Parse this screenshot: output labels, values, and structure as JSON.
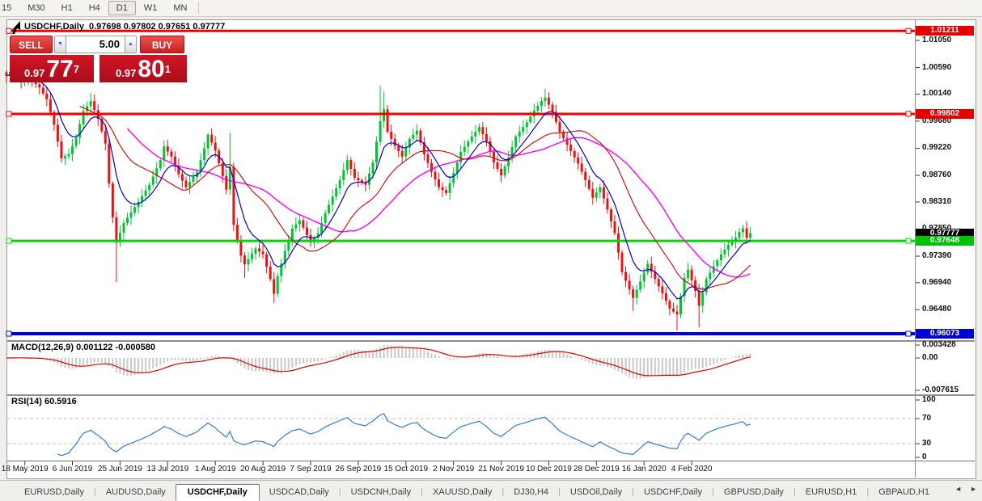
{
  "toolbar": {
    "timeframes": [
      "15",
      "M30",
      "H1",
      "H4",
      "D1",
      "W1",
      "MN"
    ],
    "active": "D1"
  },
  "chart": {
    "title": {
      "symbol": "USDCHF,Daily",
      "ohlc": "0.97698 0.97802 0.97651 0.97777"
    },
    "trade_panel": {
      "sell_label": "SELL",
      "buy_label": "BUY",
      "volume": "5.00",
      "sell_price": {
        "small": "0.97",
        "big": "77",
        "sup": "7"
      },
      "buy_price": {
        "small": "0.97",
        "big": "80",
        "sup": "1"
      }
    },
    "price_axis": {
      "ticks": [
        "1.01050",
        "1.00590",
        "1.00140",
        "0.99680",
        "0.99220",
        "0.98760",
        "0.98310",
        "0.97850",
        "0.97390",
        "0.96940",
        "0.96480",
        "0.96020"
      ]
    },
    "badges": [
      {
        "text": "1.01211",
        "price": 1.01211,
        "bg": "#e60000",
        "fg": "#ffffff"
      },
      {
        "text": "0.99802",
        "price": 0.99802,
        "bg": "#e60000",
        "fg": "#ffffff"
      },
      {
        "text": "0.97777",
        "price": 0.97777,
        "bg": "#000000",
        "fg": "#ffffff"
      },
      {
        "text": "0.97648",
        "price": 0.97648,
        "bg": "#00c300",
        "fg": "#ffffff"
      },
      {
        "text": "0.96073",
        "price": 0.96073,
        "bg": "#0000d9",
        "fg": "#ffffff"
      }
    ],
    "hlines": [
      {
        "price": 1.01211,
        "color": "#f40000",
        "w": 3
      },
      {
        "price": 0.99802,
        "color": "#f40000",
        "w": 3
      },
      {
        "price": 0.97648,
        "color": "#00d900",
        "w": 3
      },
      {
        "price": 0.96073,
        "color": "#0000e6",
        "w": 4
      }
    ],
    "dates": [
      "18 May 2019",
      "6 Jun 2019",
      "25 Jun 2019",
      "13 Jul 2019",
      "1 Aug 2019",
      "20 Aug 2019",
      "7 Sep 2019",
      "26 Sep 2019",
      "15 Oct 2019",
      "2 Nov 2019",
      "21 Nov 2019",
      "10 Dec 2019",
      "28 Dec 2019",
      "16 Jan 2020",
      "4 Feb 2020"
    ],
    "candles": {
      "count": 204,
      "anchors": [
        [
          0,
          1.0045
        ],
        [
          2,
          1.0058
        ],
        [
          4,
          1.0035
        ],
        [
          6,
          1.0042
        ],
        [
          9,
          1.0025
        ],
        [
          11,
          1.0005
        ],
        [
          13,
          0.9962
        ],
        [
          15,
          0.9905
        ],
        [
          17,
          0.9912
        ],
        [
          19,
          0.994
        ],
        [
          21,
          0.9985
        ],
        [
          23,
          1.0002
        ],
        [
          25,
          0.9972
        ],
        [
          27,
          0.993
        ],
        [
          28,
          0.9862
        ],
        [
          29,
          0.9805
        ],
        [
          30,
          0.9762
        ],
        [
          32,
          0.9795
        ],
        [
          35,
          0.9822
        ],
        [
          39,
          0.986
        ],
        [
          42,
          0.9902
        ],
        [
          43,
          0.9925
        ],
        [
          45,
          0.9908
        ],
        [
          47,
          0.9878
        ],
        [
          49,
          0.9856
        ],
        [
          52,
          0.9882
        ],
        [
          54,
          0.9922
        ],
        [
          55,
          0.9945
        ],
        [
          57,
          0.9918
        ],
        [
          59,
          0.9875
        ],
        [
          60,
          0.9852
        ],
        [
          61,
          0.989
        ],
        [
          62,
          0.9792
        ],
        [
          64,
          0.974
        ],
        [
          65,
          0.9725
        ],
        [
          68,
          0.9752
        ],
        [
          70,
          0.9742
        ],
        [
          72,
          0.97
        ],
        [
          73,
          0.9675
        ],
        [
          74,
          0.9705
        ],
        [
          76,
          0.9748
        ],
        [
          78,
          0.9786
        ],
        [
          80,
          0.98
        ],
        [
          83,
          0.9762
        ],
        [
          85,
          0.9778
        ],
        [
          87,
          0.9812
        ],
        [
          89,
          0.984
        ],
        [
          91,
          0.9868
        ],
        [
          93,
          0.9902
        ],
        [
          95,
          0.9872
        ],
        [
          98,
          0.986
        ],
        [
          100,
          0.9898
        ],
        [
          102,
          0.9968
        ],
        [
          103,
          0.9988
        ],
        [
          104,
          0.995
        ],
        [
          106,
          0.9926
        ],
        [
          108,
          0.9908
        ],
        [
          110,
          0.9938
        ],
        [
          112,
          0.9952
        ],
        [
          114,
          0.9912
        ],
        [
          116,
          0.9882
        ],
        [
          118,
          0.9856
        ],
        [
          120,
          0.9846
        ],
        [
          122,
          0.988
        ],
        [
          124,
          0.9916
        ],
        [
          127,
          0.9942
        ],
        [
          129,
          0.9958
        ],
        [
          131,
          0.9934
        ],
        [
          133,
          0.9898
        ],
        [
          135,
          0.9876
        ],
        [
          137,
          0.9906
        ],
        [
          139,
          0.9942
        ],
        [
          142,
          0.9966
        ],
        [
          144,
          0.9986
        ],
        [
          146,
          1.0002
        ],
        [
          147,
          1.0008
        ],
        [
          149,
          0.9984
        ],
        [
          151,
          0.995
        ],
        [
          153,
          0.9928
        ],
        [
          156,
          0.9896
        ],
        [
          158,
          0.9868
        ],
        [
          160,
          0.9838
        ],
        [
          162,
          0.9856
        ],
        [
          164,
          0.9818
        ],
        [
          166,
          0.9778
        ],
        [
          168,
          0.9712
        ],
        [
          171,
          0.9668
        ],
        [
          173,
          0.9696
        ],
        [
          175,
          0.9726
        ],
        [
          177,
          0.97
        ],
        [
          179,
          0.9676
        ],
        [
          181,
          0.965
        ],
        [
          183,
          0.964
        ],
        [
          185,
          0.9702
        ],
        [
          186,
          0.9716
        ],
        [
          188,
          0.968
        ],
        [
          189,
          0.9655
        ],
        [
          191,
          0.97
        ],
        [
          193,
          0.9722
        ],
        [
          195,
          0.9742
        ],
        [
          197,
          0.9758
        ],
        [
          199,
          0.977
        ],
        [
          200,
          0.978
        ],
        [
          201,
          0.9786
        ],
        [
          202,
          0.977
        ],
        [
          203,
          0.9778
        ]
      ],
      "spikes": [
        {
          "i": 23,
          "h": 1.0016
        },
        {
          "i": 30,
          "l": 0.9695
        },
        {
          "i": 61,
          "h": 0.9948
        },
        {
          "i": 65,
          "l": 0.9702
        },
        {
          "i": 73,
          "l": 0.966
        },
        {
          "i": 102,
          "h": 1.0028
        },
        {
          "i": 103,
          "h": 1.0018
        },
        {
          "i": 147,
          "h": 1.0023
        },
        {
          "i": 171,
          "l": 0.9646
        },
        {
          "i": 183,
          "l": 0.9613
        },
        {
          "i": 189,
          "l": 0.9618
        },
        {
          "i": 201,
          "h": 0.9792
        },
        {
          "i": 203,
          "h": 0.9788
        }
      ]
    },
    "colors": {
      "up": "#00c432",
      "down": "#ee1111",
      "ma_fast": "#0000c8",
      "ma_mid": "#d40000",
      "ma_slow": "#ff00ff"
    }
  },
  "macd": {
    "label": "MACD(12,26,9) 0.001122 -0.000580",
    "ticks": [
      "0.003428",
      "0.00",
      "-0.007615"
    ],
    "bar_color": "#c9c9c9",
    "signal_color": "#e00000"
  },
  "rsi": {
    "label": "RSI(14) 60.5916",
    "ticks": [
      "100",
      "70",
      "30",
      "0"
    ],
    "line_color": "#2f7fd6"
  },
  "tabs": {
    "items": [
      {
        "label": "EURUSD,Daily",
        "active": false
      },
      {
        "label": "AUDUSD,Daily",
        "active": false
      },
      {
        "label": "USDCHF,Daily",
        "active": true
      },
      {
        "label": "USDCAD,Daily",
        "active": false
      },
      {
        "label": "USDCNH,Daily",
        "active": false
      },
      {
        "label": "XAUUSD,Daily",
        "active": false
      },
      {
        "label": "DJ30,H4",
        "active": false
      },
      {
        "label": "USDOil,Daily",
        "active": false
      },
      {
        "label": "USDCHF,Daily",
        "active": false
      },
      {
        "label": "GBPUSD,Daily",
        "active": false
      },
      {
        "label": "EURUSD,H1",
        "active": false
      },
      {
        "label": "GBPAUD,H1",
        "active": false
      }
    ],
    "scroll_left": "◄",
    "scroll_right": "►"
  }
}
